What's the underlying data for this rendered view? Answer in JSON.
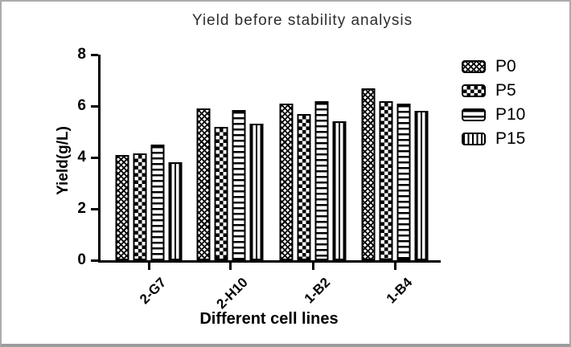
{
  "figure": {
    "border_color": "#ababab",
    "background": "#ffffff"
  },
  "chart_data": {
    "type": "bar",
    "title": "Yield before stability analysis",
    "xlabel": "Different cell lines",
    "ylabel": "Yield(g/L)",
    "categories": [
      "2-G7",
      "2-H10",
      "1-B2",
      "1-B4"
    ],
    "series": [
      {
        "name": "P0",
        "pattern": "dense-diamond-crosshatch",
        "values": [
          4.1,
          5.9,
          6.1,
          6.7
        ]
      },
      {
        "name": "P5",
        "pattern": "checkerboard",
        "values": [
          4.15,
          5.2,
          5.7,
          6.2
        ]
      },
      {
        "name": "P10",
        "pattern": "horizontal-stripes",
        "values": [
          4.5,
          5.85,
          6.2,
          6.1
        ]
      },
      {
        "name": "P15",
        "pattern": "vertical-stripes",
        "values": [
          3.8,
          5.3,
          5.4,
          5.8
        ]
      }
    ],
    "ylim": [
      0,
      8
    ],
    "yticks": [
      0,
      2,
      4,
      6,
      8
    ],
    "grid": false,
    "legend_position": "right",
    "colors": {
      "bar_fill": "#ffffff",
      "bar_stroke": "#000000",
      "axis": "#000000",
      "title_text": "#2d2d2d",
      "text": "#000000"
    }
  }
}
